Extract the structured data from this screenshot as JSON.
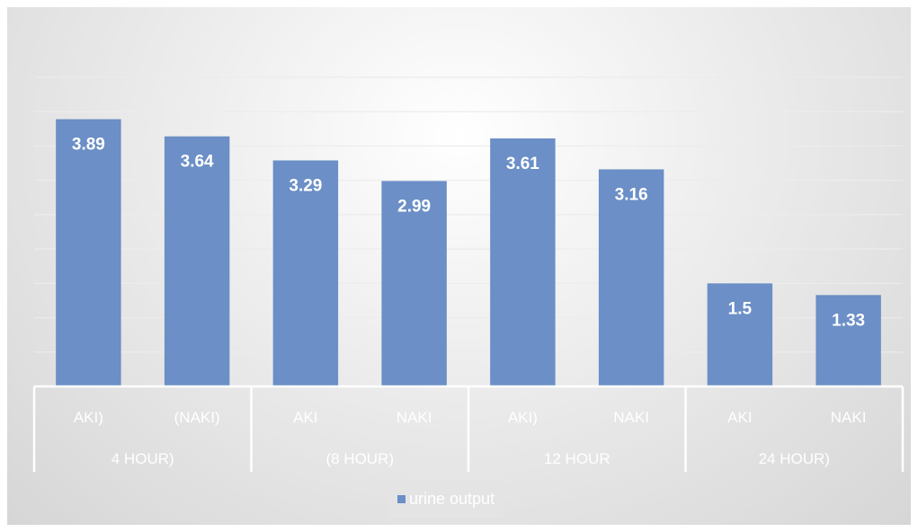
{
  "chart_data": {
    "type": "bar",
    "title": "",
    "groups": [
      "4 HOUR)",
      "(8 HOUR)",
      "12 HOUR",
      "24 HOUR)"
    ],
    "categories": [
      "AKI)",
      "(NAKI)",
      "AKI",
      "NAKI",
      "AKI)",
      "NAKI",
      "AKI",
      "NAKI"
    ],
    "series": [
      {
        "name": "urine output",
        "values": [
          3.89,
          3.64,
          3.29,
          2.99,
          3.61,
          3.16,
          1.5,
          1.33
        ],
        "color": "#6b8fc6"
      }
    ],
    "ylim": [
      0,
      4.5
    ],
    "ytick_step": 0.5,
    "grid": true,
    "legend_position": "bottom"
  }
}
